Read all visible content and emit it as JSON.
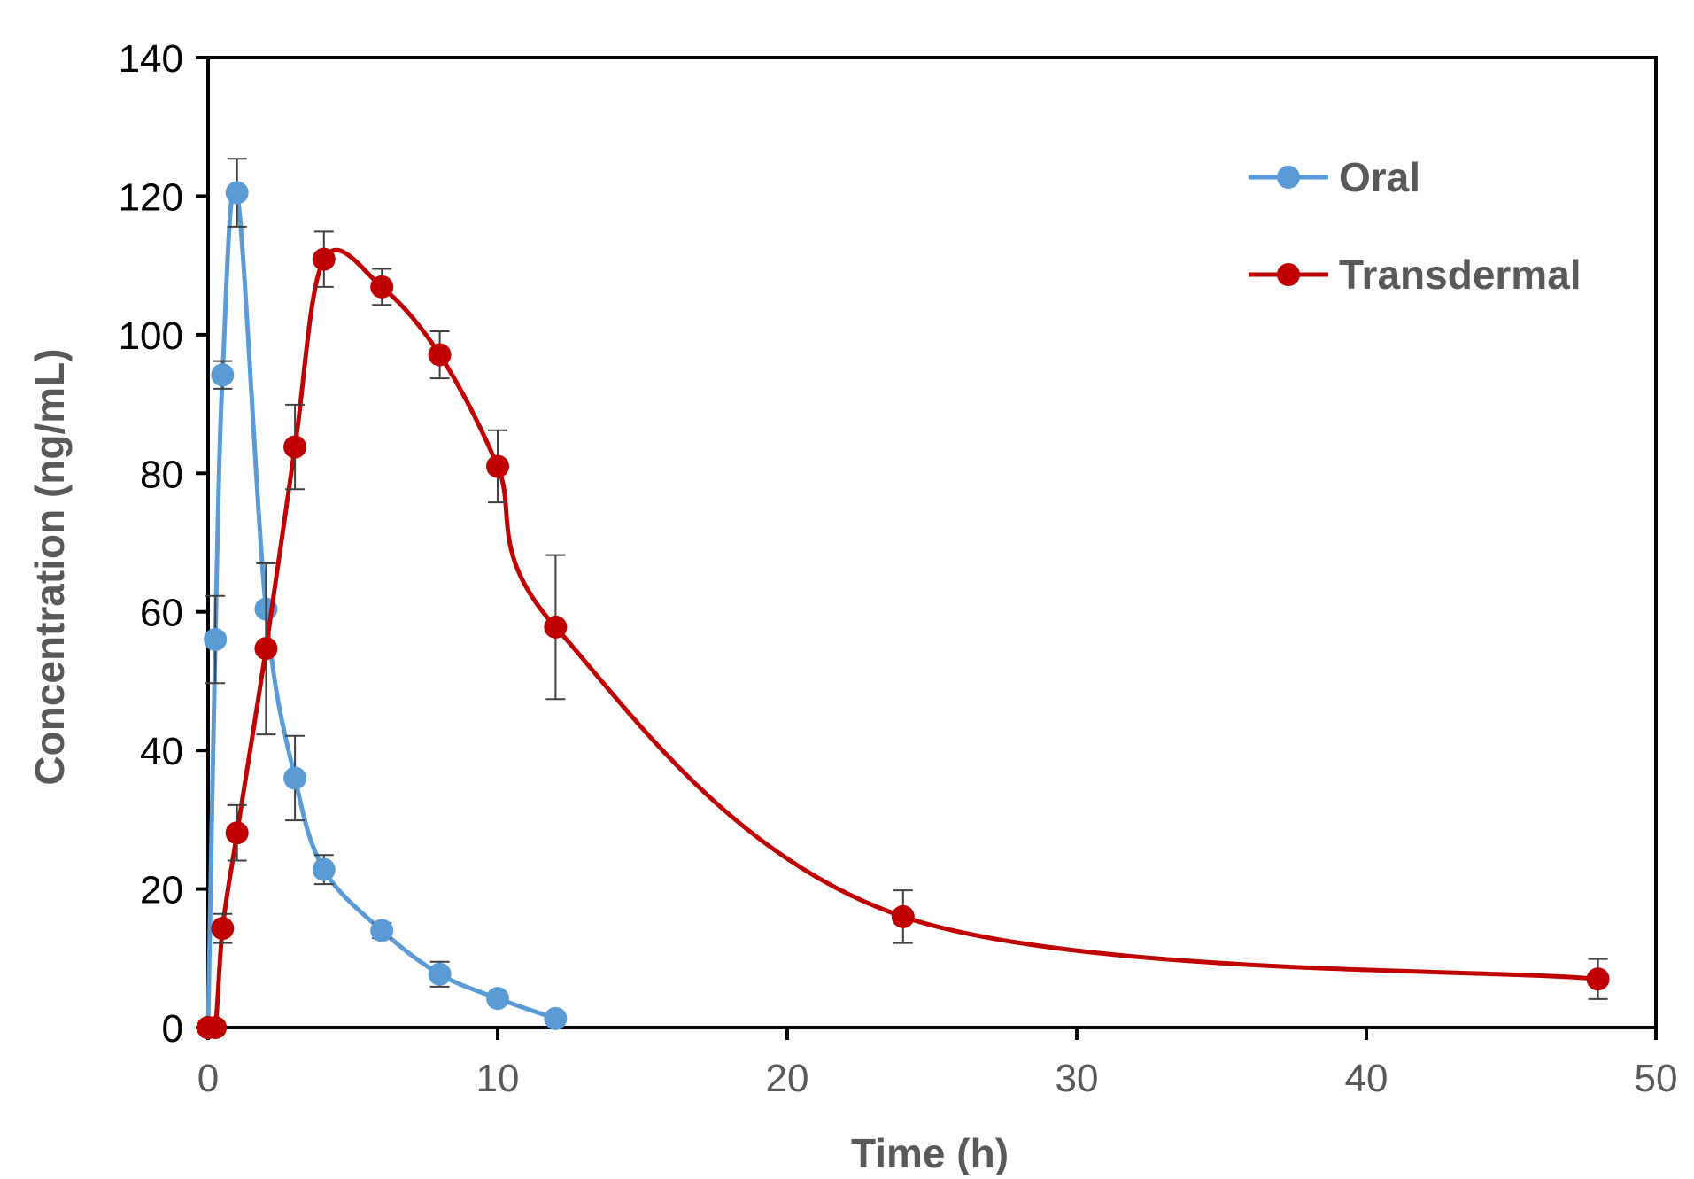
{
  "chart_data": {
    "type": "line",
    "title": "",
    "xlabel": "Time (h)",
    "ylabel": "Concentration (ng/mL)",
    "xlim": [
      0,
      50
    ],
    "ylim": [
      0,
      140
    ],
    "xticks": [
      0,
      10,
      20,
      30,
      40,
      50
    ],
    "yticks": [
      0,
      20,
      40,
      60,
      80,
      100,
      120,
      140
    ],
    "grid": false,
    "legend_position": "top-right",
    "series": [
      {
        "name": "Oral",
        "color": "#5B9BD5",
        "points": [
          {
            "x": 0,
            "y": 0,
            "err": 0
          },
          {
            "x": 0.25,
            "y": 56,
            "err": 6.3
          },
          {
            "x": 0.5,
            "y": 94.2,
            "err": 2.0
          },
          {
            "x": 1,
            "y": 120.5,
            "err": 4.9
          },
          {
            "x": 2,
            "y": 60.4,
            "err": 6.6
          },
          {
            "x": 3,
            "y": 36,
            "err": 6.1
          },
          {
            "x": 4,
            "y": 22.8,
            "err": 2.1
          },
          {
            "x": 6,
            "y": 14,
            "err": 1.1
          },
          {
            "x": 8,
            "y": 7.7,
            "err": 1.8
          },
          {
            "x": 10,
            "y": 4.2,
            "err": 0.7
          },
          {
            "x": 12,
            "y": 1.3,
            "err": 0.3
          }
        ]
      },
      {
        "name": "Transdermal",
        "color": "#C00000",
        "points": [
          {
            "x": 0,
            "y": 0,
            "err": 0
          },
          {
            "x": 0.25,
            "y": 0,
            "err": 0
          },
          {
            "x": 0.5,
            "y": 14.3,
            "err": 2.1
          },
          {
            "x": 1,
            "y": 28.1,
            "err": 4.0
          },
          {
            "x": 2,
            "y": 54.7,
            "err": 12.4
          },
          {
            "x": 3,
            "y": 83.8,
            "err": 6.1
          },
          {
            "x": 4,
            "y": 110.9,
            "err": 4.0
          },
          {
            "x": 6,
            "y": 106.9,
            "err": 2.6
          },
          {
            "x": 8,
            "y": 97.1,
            "err": 3.4
          },
          {
            "x": 10,
            "y": 81,
            "err": 5.2
          },
          {
            "x": 12,
            "y": 57.8,
            "err": 10.4
          },
          {
            "x": 24,
            "y": 16,
            "err": 3.8
          },
          {
            "x": 48,
            "y": 7,
            "err": 2.9
          }
        ]
      }
    ]
  }
}
